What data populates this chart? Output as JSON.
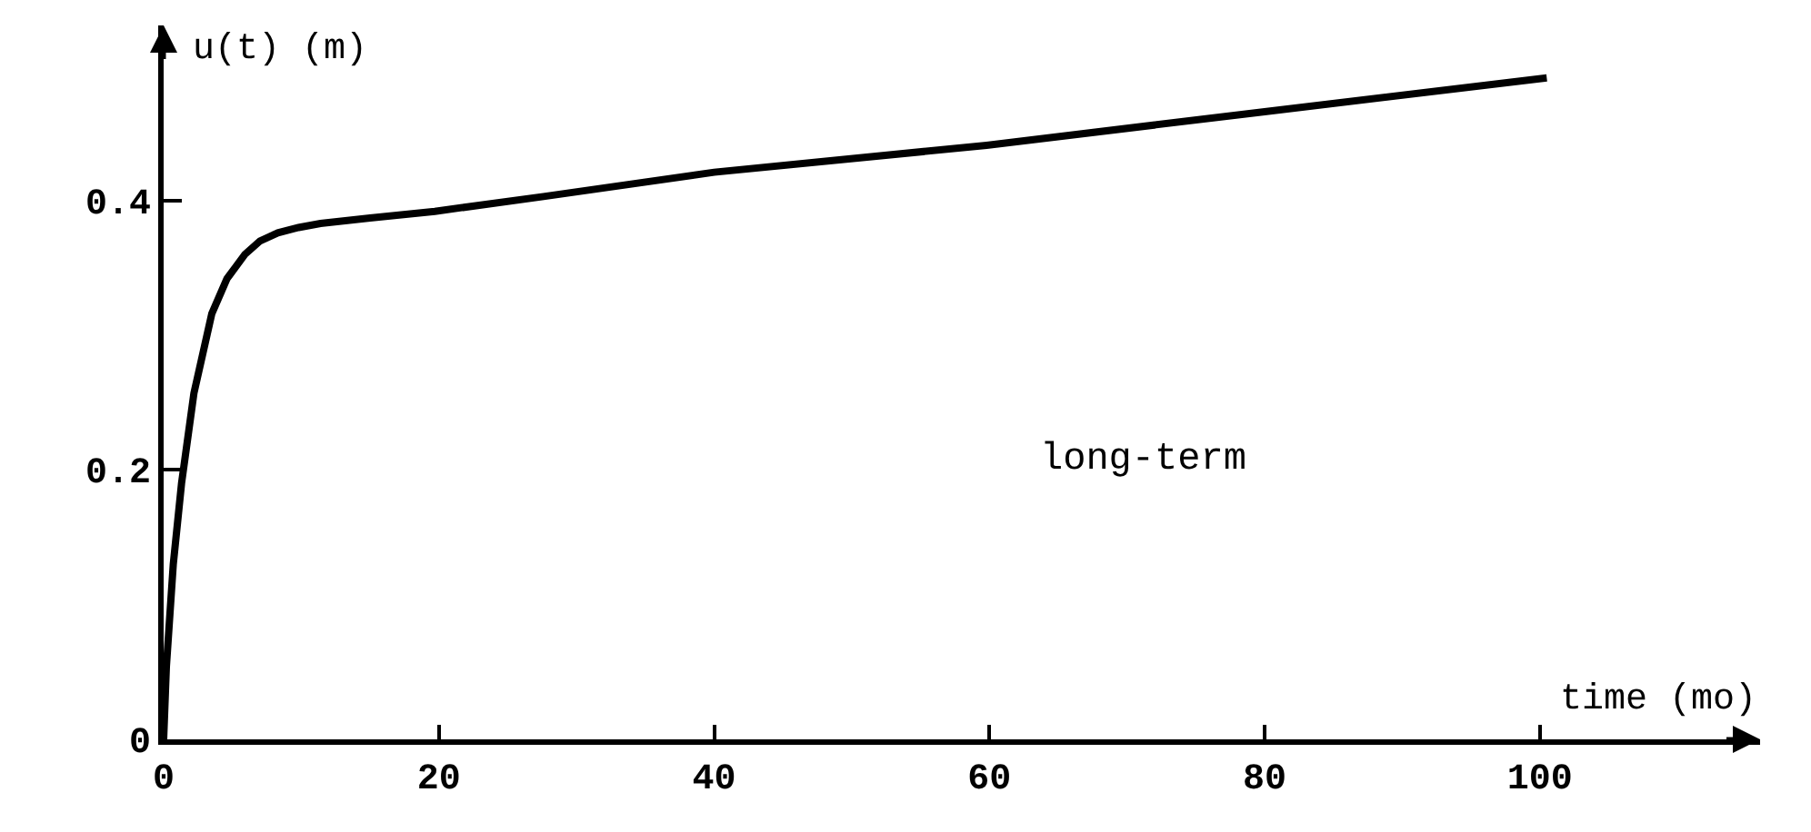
{
  "chart_data": {
    "type": "line",
    "xlabel": "time (mo)",
    "ylabel": "u(t) (m)",
    "annotations": [
      "long-term"
    ],
    "x": [
      0,
      0.2,
      0.7,
      1.3,
      2.2,
      3.5,
      4.6,
      5.9,
      7,
      8.3,
      9.8,
      11.4,
      15,
      19.7,
      27.6,
      40,
      59.8,
      80,
      100.5
    ],
    "series": [
      {
        "color": "#000000",
        "values": [
          0,
          0.054,
          0.13,
          0.19,
          0.257,
          0.316,
          0.342,
          0.36,
          0.37,
          0.376,
          0.38,
          0.383,
          0.387,
          0.392,
          0.403,
          0.421,
          0.441,
          0.466,
          0.491
        ]
      }
    ],
    "xlim": [
      0,
      116
    ],
    "ylim": [
      0,
      0.53
    ],
    "xticks": [
      0,
      20,
      40,
      60,
      80,
      100
    ],
    "yticks": [
      0,
      0.2,
      0.4
    ],
    "grid": false,
    "marker": "none",
    "line_style": "solid"
  }
}
